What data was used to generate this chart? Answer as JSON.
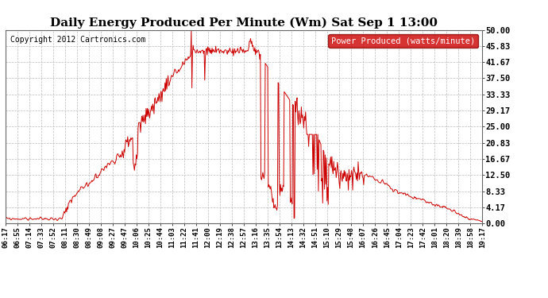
{
  "title": "Daily Energy Produced Per Minute (Wm) Sat Sep 1 13:00",
  "copyright": "Copyright 2012 Cartronics.com",
  "legend_label": "Power Produced (watts/minute)",
  "legend_bg": "#cc0000",
  "legend_fg": "#ffffff",
  "line_color": "#cc0000",
  "bg_color": "#ffffff",
  "grid_color": "#bbbbbb",
  "ylim": [
    0,
    50
  ],
  "yticks": [
    0.0,
    4.17,
    8.33,
    12.5,
    16.67,
    20.83,
    25.0,
    29.17,
    33.33,
    37.5,
    41.67,
    45.83,
    50.0
  ],
  "ytick_labels": [
    "0.00",
    "4.17",
    "8.33",
    "12.50",
    "16.67",
    "20.83",
    "25.00",
    "29.17",
    "33.33",
    "37.50",
    "41.67",
    "45.83",
    "50.00"
  ],
  "xtick_labels": [
    "06:17",
    "06:55",
    "07:14",
    "07:33",
    "07:52",
    "08:11",
    "08:30",
    "08:49",
    "09:08",
    "09:27",
    "09:47",
    "10:06",
    "10:25",
    "10:44",
    "11:03",
    "11:22",
    "11:41",
    "12:00",
    "12:19",
    "12:38",
    "12:57",
    "13:16",
    "13:35",
    "13:54",
    "14:13",
    "14:32",
    "14:51",
    "15:10",
    "15:29",
    "15:48",
    "16:07",
    "16:26",
    "16:45",
    "17:04",
    "17:23",
    "17:42",
    "18:01",
    "18:20",
    "18:39",
    "18:58",
    "19:17"
  ],
  "n_points": 781
}
